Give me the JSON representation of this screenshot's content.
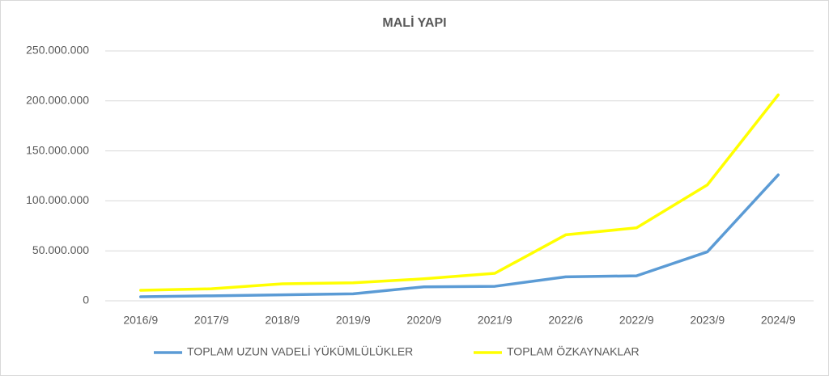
{
  "chart_data": {
    "type": "line",
    "title": "MALİ YAPI",
    "categories": [
      "2016/9",
      "2017/9",
      "2018/9",
      "2019/9",
      "2020/9",
      "2021/9",
      "2022/6",
      "2022/9",
      "2023/9",
      "2024/9"
    ],
    "series": [
      {
        "name": "TOPLAM UZUN VADELİ YÜKÜMLÜLÜKLER",
        "color": "#5b9bd5",
        "values": [
          4000000,
          5000000,
          6000000,
          7000000,
          14000000,
          14500000,
          24000000,
          25000000,
          49000000,
          126000000
        ]
      },
      {
        "name": "TOPLAM ÖZKAYNAKLAR",
        "color": "#ffff00",
        "values": [
          10500000,
          12000000,
          17000000,
          18000000,
          22000000,
          27500000,
          66000000,
          73000000,
          116000000,
          206000000
        ]
      }
    ],
    "ylim": [
      0,
      250000000
    ],
    "yticks": [
      0,
      {
        "value": 50000000,
        "label": "50.000.000"
      },
      {
        "value": 100000000,
        "label": "100.000.000"
      },
      {
        "value": 150000000,
        "label": "150.000.000"
      },
      {
        "value": 200000000,
        "label": "200.000.000"
      },
      {
        "value": 250000000,
        "label": "250.000.000"
      }
    ],
    "grid": true,
    "legend": "bottom"
  }
}
